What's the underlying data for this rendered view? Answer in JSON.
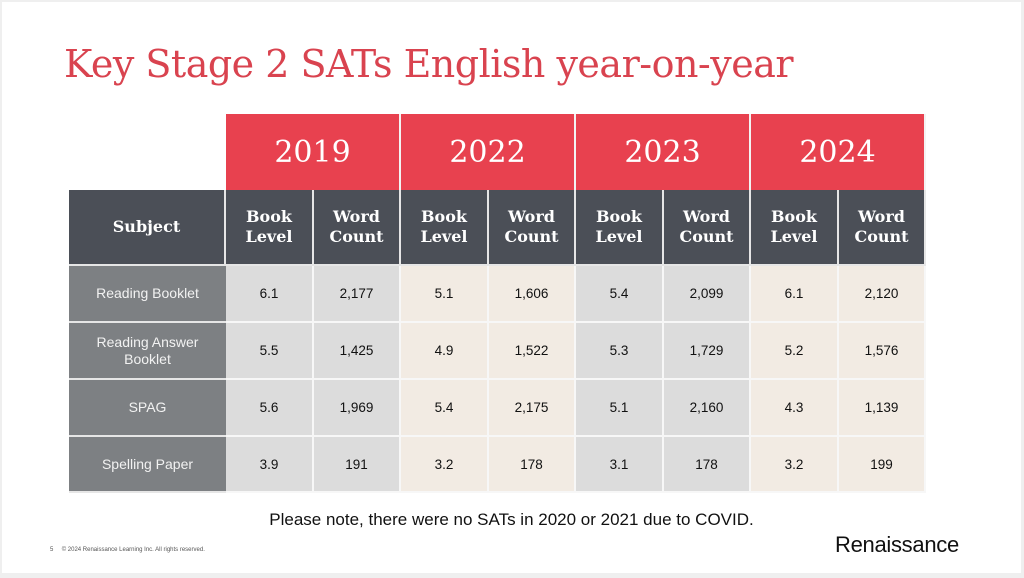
{
  "title": "Key Stage 2 SATs English year-on-year",
  "table": {
    "years": [
      "2019",
      "2022",
      "2023",
      "2024"
    ],
    "subject_header": "Subject",
    "sub_headers": [
      "Book Level",
      "Word Count"
    ],
    "rows": [
      {
        "subject": "Reading Booklet",
        "values": [
          "6.1",
          "2,177",
          "5.1",
          "1,606",
          "5.4",
          "2,099",
          "6.1",
          "2,120"
        ]
      },
      {
        "subject": "Reading Answer Booklet",
        "values": [
          "5.5",
          "1,425",
          "4.9",
          "1,522",
          "5.3",
          "1,729",
          "5.2",
          "1,576"
        ]
      },
      {
        "subject": "SPAG",
        "values": [
          "5.6",
          "1,969",
          "5.4",
          "2,175",
          "5.1",
          "2,160",
          "4.3",
          "1,139"
        ]
      },
      {
        "subject": "Spelling Paper",
        "values": [
          "3.9",
          "191",
          "3.2",
          "178",
          "3.1",
          "178",
          "3.2",
          "199"
        ]
      }
    ]
  },
  "note": "Please note, there were no SATs in 2020 or 2021 due to COVID.",
  "footer": {
    "page": "5",
    "copyright": "© 2024 Renaissance Learning Inc. All rights reserved."
  },
  "logo": "Renaissance",
  "colors": {
    "accent": "#e8414f",
    "header": "#4b4f57",
    "subject": "#7d8083",
    "gray": "#dcdcdc",
    "beige": "#f2ebe3"
  }
}
